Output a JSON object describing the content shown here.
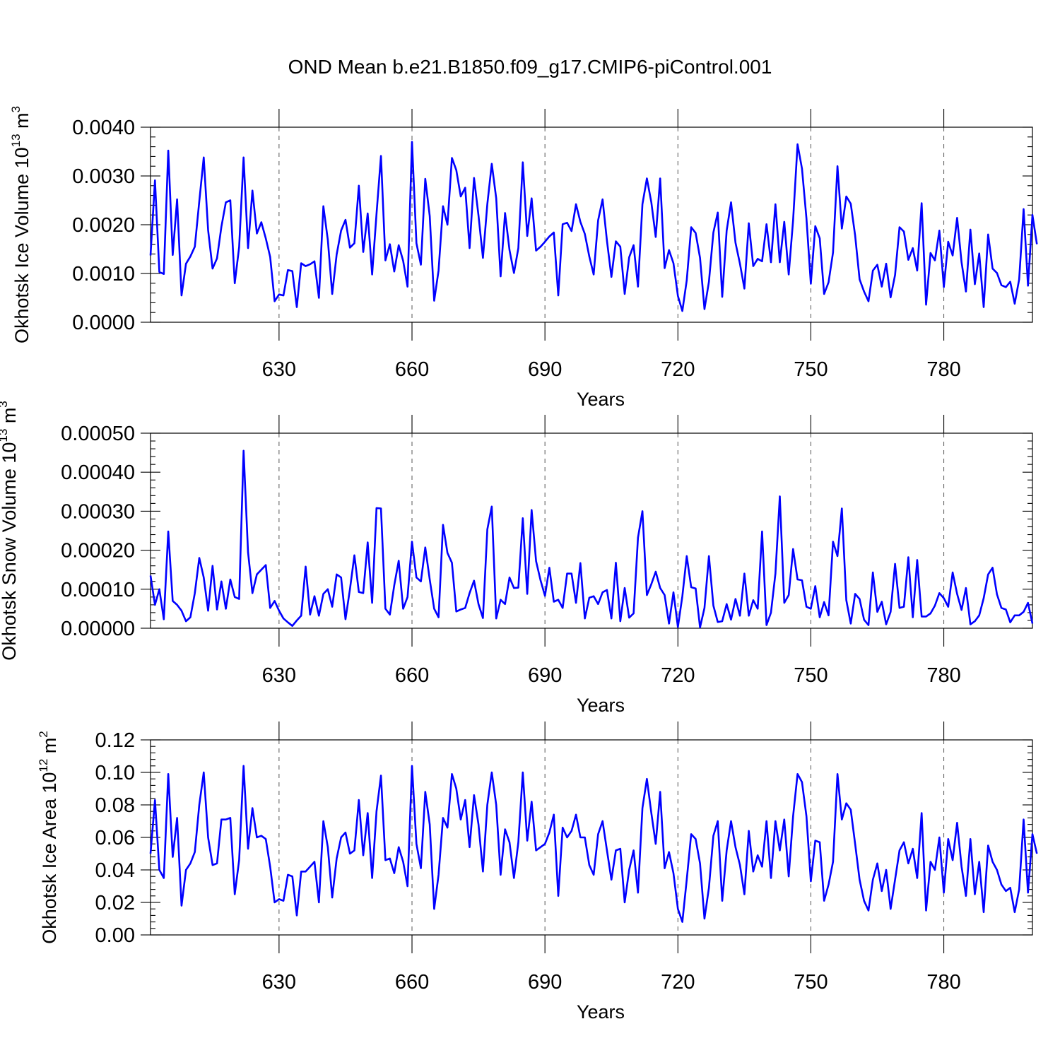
{
  "title": "OND Mean b.e21.B1850.f09_g17.CMIP6-piControl.001",
  "colors": {
    "series": "#0000ff",
    "frame": "#000000",
    "grid": "#555555"
  },
  "chart_data": [
    {
      "type": "line",
      "ylabel": {
        "text": "Okhotsk Ice Volume 10",
        "exp": "13",
        "unit": " m",
        "unit_exp": "3"
      },
      "xlabel": "Years",
      "xlim": [
        601,
        800
      ],
      "ylim": [
        0,
        0.004
      ],
      "x_ticks": [
        630,
        660,
        690,
        720,
        750,
        780
      ],
      "x_tick_labels": [
        "630",
        "660",
        "690",
        "720",
        "750",
        "780"
      ],
      "y_ticks": [
        0,
        0.001,
        0.002,
        0.003,
        0.004
      ],
      "y_tick_labels": [
        "0.0000",
        "0.0010",
        "0.0020",
        "0.0030",
        "0.0040"
      ],
      "grid": "vertical dashed at x ticks",
      "x_start": 601,
      "values": [
        0.00137,
        0.00291,
        0.00103,
        0.00099,
        0.00352,
        0.00138,
        0.00252,
        0.00055,
        0.0012,
        0.00135,
        0.00155,
        0.00248,
        0.00338,
        0.00189,
        0.0011,
        0.00131,
        0.00196,
        0.00246,
        0.0025,
        0.0008,
        0.00154,
        0.00338,
        0.00152,
        0.0027,
        0.00182,
        0.00205,
        0.00172,
        0.00134,
        0.00043,
        0.00057,
        0.00055,
        0.00107,
        0.00105,
        0.00031,
        0.00121,
        0.00115,
        0.00119,
        0.00125,
        0.0005,
        0.00238,
        0.00169,
        0.00058,
        0.00139,
        0.00188,
        0.0021,
        0.00153,
        0.00162,
        0.0028,
        0.00144,
        0.00223,
        0.00098,
        0.00222,
        0.00341,
        0.00127,
        0.0016,
        0.00104,
        0.00158,
        0.00126,
        0.00073,
        0.0037,
        0.00162,
        0.00118,
        0.00294,
        0.00218,
        0.00044,
        0.00106,
        0.00238,
        0.002,
        0.00337,
        0.00312,
        0.00258,
        0.00276,
        0.00152,
        0.00296,
        0.00219,
        0.00132,
        0.00242,
        0.00325,
        0.00254,
        0.00094,
        0.00224,
        0.00148,
        0.00101,
        0.00152,
        0.00328,
        0.00177,
        0.00254,
        0.00147,
        0.00155,
        0.00165,
        0.00176,
        0.00184,
        0.00055,
        0.00201,
        0.00204,
        0.00187,
        0.00242,
        0.00206,
        0.00181,
        0.00135,
        0.00098,
        0.00209,
        0.00252,
        0.00167,
        0.00093,
        0.00166,
        0.00155,
        0.00058,
        0.00133,
        0.00158,
        0.00073,
        0.00242,
        0.00295,
        0.00246,
        0.00175,
        0.00295,
        0.00111,
        0.00148,
        0.00121,
        0.00054,
        0.00023,
        0.00086,
        0.00195,
        0.00183,
        0.00132,
        0.00027,
        0.00083,
        0.00184,
        0.00225,
        0.00052,
        0.00188,
        0.00246,
        0.00163,
        0.0012,
        0.00069,
        0.00203,
        0.00115,
        0.0013,
        0.00125,
        0.00201,
        0.00123,
        0.00242,
        0.00123,
        0.00206,
        0.00098,
        0.00209,
        0.00365,
        0.00315,
        0.00213,
        0.00079,
        0.00197,
        0.00172,
        0.00058,
        0.00082,
        0.00143,
        0.0032,
        0.00192,
        0.00258,
        0.00243,
        0.00178,
        0.00088,
        0.00063,
        0.00043,
        0.00106,
        0.00118,
        0.00073,
        0.0012,
        0.00051,
        0.00097,
        0.00195,
        0.00186,
        0.00128,
        0.00152,
        0.00106,
        0.00244,
        0.00036,
        0.00142,
        0.00127,
        0.00188,
        0.00072,
        0.00165,
        0.00137,
        0.00214,
        0.00123,
        0.00063,
        0.0019,
        0.00078,
        0.00141,
        0.00031,
        0.0018,
        0.0011,
        0.00101,
        0.00076,
        0.00072,
        0.00083,
        0.00038,
        0.00088,
        0.00232,
        0.00075,
        0.0022,
        0.0016
      ]
    },
    {
      "type": "line",
      "ylabel": {
        "text": "Okhotsk Snow Volume 10",
        "exp": "13",
        "unit": " m",
        "unit_exp": "3"
      },
      "xlabel": "Years",
      "xlim": [
        601,
        800
      ],
      "ylim": [
        0,
        0.0005
      ],
      "x_ticks": [
        630,
        660,
        690,
        720,
        750,
        780
      ],
      "x_tick_labels": [
        "630",
        "660",
        "690",
        "720",
        "750",
        "780"
      ],
      "y_ticks": [
        0,
        0.0001,
        0.0002,
        0.0003,
        0.0004,
        0.0005
      ],
      "y_tick_labels": [
        "0.00000",
        "0.00010",
        "0.00020",
        "0.00030",
        "0.00040",
        "0.00050"
      ],
      "grid": "vertical dashed at x ticks",
      "x_start": 601,
      "values": [
        0.000135,
        6e-05,
        0.0001,
        2.3e-05,
        0.000248,
        7e-05,
        6e-05,
        4.5e-05,
        1.8e-05,
        2.8e-05,
        9e-05,
        0.00018,
        0.00013,
        4.5e-05,
        0.00016,
        4.8e-05,
        0.00012,
        5e-05,
        0.000125,
        8e-05,
        7.5e-05,
        0.000455,
        0.000195,
        9e-05,
        0.000138,
        0.00015,
        0.000162,
        5.2e-05,
        7e-05,
        4.5e-05,
        2.5e-05,
        1.5e-05,
        6e-06,
        2e-05,
        3.2e-05,
        0.000158,
        3.5e-05,
        8.2e-05,
        3.2e-05,
        8.8e-05,
        0.0001,
        5.5e-05,
        0.000138,
        0.00013,
        2.3e-05,
        0.0001,
        0.000187,
        9.3e-05,
        9e-05,
        0.00022,
        6.5e-05,
        0.000308,
        0.000307,
        5e-05,
        3.5e-05,
        0.00011,
        0.000173,
        5e-05,
        8e-05,
        0.000222,
        0.00013,
        0.00012,
        0.000207,
        0.000125,
        5e-05,
        2.8e-05,
        0.000265,
        0.000193,
        0.000168,
        4.3e-05,
        4.8e-05,
        5.2e-05,
        9e-05,
        0.000122,
        6.2e-05,
        2.6e-05,
        0.000253,
        0.000312,
        2.5e-05,
        7.3e-05,
        6.2e-05,
        0.00013,
        0.000103,
        0.000104,
        0.000282,
        8.8e-05,
        0.000303,
        0.000172,
        0.000123,
        8.3e-05,
        0.000155,
        6.8e-05,
        7.3e-05,
        5.2e-05,
        0.00014,
        0.00014,
        6.5e-05,
        0.000167,
        2.5e-05,
        7.8e-05,
        8.2e-05,
        6.2e-05,
        9.2e-05,
        9.8e-05,
        2.5e-05,
        0.000168,
        1.8e-05,
        0.000103,
        2.7e-05,
        3.8e-05,
        0.000232,
        0.0003,
        8.5e-05,
        0.000113,
        0.000145,
        0.000103,
        8.5e-05,
        1.2e-05,
        9.2e-05,
        3e-06,
        8.2e-05,
        0.000185,
        0.000105,
        0.000102,
        2e-06,
        5.2e-05,
        0.000185,
        5.8e-05,
        1.6e-05,
        1.8e-05,
        6.2e-05,
        2.2e-05,
        7.5e-05,
        3.2e-05,
        0.00014,
        3.2e-05,
        7.2e-05,
        5e-05,
        0.000248,
        8e-06,
        4e-05,
        0.00014,
        0.000338,
        6.5e-05,
        8.5e-05,
        0.000203,
        0.000125,
        0.000123,
        5.5e-05,
        5e-05,
        0.000108,
        2.8e-05,
        6.7e-05,
        3.3e-05,
        0.000222,
        0.000185,
        0.000307,
        7.2e-05,
        1.2e-05,
        8.8e-05,
        7.5e-05,
        2.2e-05,
        8e-06,
        0.000143,
        4.2e-05,
        6.8e-05,
        1e-05,
        4.2e-05,
        0.000165,
        5.2e-05,
        5.5e-05,
        0.000182,
        2.8e-05,
        0.000175,
        3e-05,
        3e-05,
        3.8e-05,
        5.8e-05,
        9e-05,
        7.7e-05,
        5.5e-05,
        0.000143,
        8.8e-05,
        4.7e-05,
        0.000103,
        1e-05,
        1.8e-05,
        3.3e-05,
        7.7e-05,
        0.000138,
        0.000155,
        8.7e-05,
        5.2e-05,
        4.8e-05,
        1.5e-05,
        3.3e-05,
        3.3e-05,
        4.2e-05,
        6.5e-05,
        1.2e-05
      ]
    },
    {
      "type": "line",
      "ylabel": {
        "text": "Okhotsk Ice Area 10",
        "exp": "12",
        "unit": " m",
        "unit_exp": "2"
      },
      "xlabel": "Years",
      "xlim": [
        601,
        800
      ],
      "ylim": [
        0,
        0.12
      ],
      "x_ticks": [
        630,
        660,
        690,
        720,
        750,
        780
      ],
      "x_tick_labels": [
        "630",
        "660",
        "690",
        "720",
        "750",
        "780"
      ],
      "y_ticks": [
        0,
        0.02,
        0.04,
        0.06,
        0.08,
        0.1,
        0.12
      ],
      "y_tick_labels": [
        "0.00",
        "0.02",
        "0.04",
        "0.06",
        "0.08",
        "0.10",
        "0.12"
      ],
      "grid": "vertical dashed at x ticks",
      "x_start": 601,
      "values": [
        0.05,
        0.083,
        0.04,
        0.035,
        0.099,
        0.048,
        0.072,
        0.018,
        0.04,
        0.044,
        0.051,
        0.08,
        0.1,
        0.06,
        0.043,
        0.044,
        0.071,
        0.071,
        0.072,
        0.025,
        0.046,
        0.104,
        0.053,
        0.078,
        0.06,
        0.061,
        0.059,
        0.042,
        0.02,
        0.022,
        0.021,
        0.037,
        0.036,
        0.012,
        0.039,
        0.039,
        0.042,
        0.045,
        0.02,
        0.07,
        0.054,
        0.023,
        0.047,
        0.06,
        0.063,
        0.05,
        0.052,
        0.083,
        0.049,
        0.075,
        0.035,
        0.076,
        0.098,
        0.046,
        0.047,
        0.038,
        0.054,
        0.045,
        0.03,
        0.104,
        0.056,
        0.041,
        0.088,
        0.068,
        0.016,
        0.037,
        0.072,
        0.066,
        0.099,
        0.09,
        0.071,
        0.083,
        0.054,
        0.086,
        0.068,
        0.039,
        0.08,
        0.1,
        0.08,
        0.037,
        0.065,
        0.057,
        0.035,
        0.057,
        0.1,
        0.058,
        0.082,
        0.052,
        0.054,
        0.056,
        0.063,
        0.074,
        0.024,
        0.066,
        0.06,
        0.064,
        0.074,
        0.06,
        0.06,
        0.043,
        0.037,
        0.062,
        0.07,
        0.052,
        0.034,
        0.052,
        0.053,
        0.02,
        0.04,
        0.052,
        0.026,
        0.078,
        0.096,
        0.075,
        0.056,
        0.088,
        0.041,
        0.051,
        0.038,
        0.016,
        0.008,
        0.034,
        0.062,
        0.059,
        0.044,
        0.01,
        0.029,
        0.061,
        0.07,
        0.021,
        0.052,
        0.07,
        0.054,
        0.043,
        0.025,
        0.064,
        0.039,
        0.049,
        0.042,
        0.07,
        0.035,
        0.07,
        0.052,
        0.071,
        0.036,
        0.073,
        0.099,
        0.094,
        0.073,
        0.033,
        0.058,
        0.057,
        0.021,
        0.031,
        0.045,
        0.099,
        0.071,
        0.081,
        0.077,
        0.056,
        0.034,
        0.021,
        0.015,
        0.034,
        0.044,
        0.027,
        0.04,
        0.016,
        0.034,
        0.052,
        0.057,
        0.044,
        0.053,
        0.035,
        0.075,
        0.015,
        0.045,
        0.04,
        0.06,
        0.026,
        0.059,
        0.046,
        0.069,
        0.042,
        0.024,
        0.059,
        0.025,
        0.045,
        0.014,
        0.055,
        0.045,
        0.04,
        0.031,
        0.027,
        0.029,
        0.014,
        0.028,
        0.071,
        0.026,
        0.062,
        0.05
      ]
    }
  ]
}
